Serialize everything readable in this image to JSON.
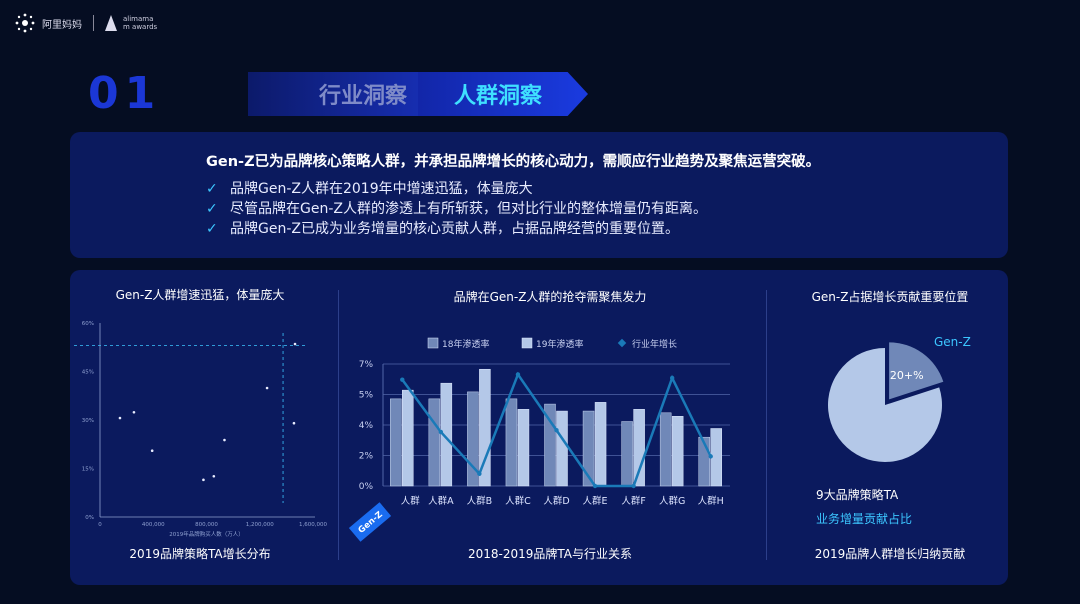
{
  "header": {
    "logo_text": "阿里妈妈",
    "awards_line1": "alimama",
    "awards_line2": "m awards"
  },
  "banner": {
    "number": "01",
    "tabs": [
      {
        "label": "行业洞察",
        "active": false
      },
      {
        "label": "人群洞察",
        "active": true
      }
    ]
  },
  "summary": {
    "headline": "Gen-Z已为品牌核心策略人群，并承担品牌增长的核心动力，需顺应行业趋势及聚焦运营突破。",
    "check_icon": "✓",
    "bullets": [
      "品牌Gen-Z人群在2019年中增速迅猛，体量庞大",
      "尽管品牌在Gen-Z人群的渗透上有所斩获，但对比行业的整体增量仍有距离。",
      "品牌Gen-Z已成为业务增量的核心贡献人群，占据品牌经营的重要位置。"
    ]
  },
  "colors": {
    "bar18": "#7088b8",
    "bar19": "#b4c8e8",
    "line": "#1a7ab8",
    "accent": "#3cc6ff",
    "panel": "#0b1a5e"
  },
  "chart_data": [
    {
      "type": "scatter",
      "title": "Gen-Z人群增速迅猛，体量庞大",
      "caption": "2019品牌策略TA增长分布",
      "xlabel": "2019年品牌购买人数（万人）",
      "xlim": [
        0,
        1600000
      ],
      "ylim": [
        0,
        60
      ],
      "xticks": [
        "0",
        "400,000",
        "800,000",
        "1,200,000",
        "1,600,000"
      ],
      "yticks": [
        "0%",
        "15%",
        "30%",
        "45%",
        "60%"
      ],
      "points": [
        [
          150000,
          30.6
        ],
        [
          255000,
          32.4
        ],
        [
          392000,
          20.5
        ],
        [
          777000,
          11.5
        ],
        [
          855000,
          12.6
        ],
        [
          935000,
          23.8
        ],
        [
          1255000,
          39.9
        ],
        [
          1457000,
          29
        ],
        [
          1465000,
          53.5
        ]
      ],
      "reference_lines": {
        "x": 1375000,
        "y": 53
      }
    },
    {
      "type": "bar",
      "title": "品牌在Gen-Z人群的抢夺需聚焦发力",
      "caption": "2018-2019品牌TA与行业关系",
      "categories": [
        "人群",
        "人群A",
        "人群B",
        "人群C",
        "人群D",
        "人群E",
        "人群F",
        "人群G",
        "人群H"
      ],
      "highlight_tag": "Gen-Z",
      "yticks": [
        "0%",
        "2%",
        "4%",
        "5%",
        "7%"
      ],
      "ylim": [
        0,
        7
      ],
      "series": [
        {
          "name": "18年渗透率",
          "type": "bar",
          "values": [
            5.0,
            5.0,
            5.4,
            5.0,
            4.7,
            4.3,
            3.7,
            4.2,
            2.8
          ]
        },
        {
          "name": "19年渗透率",
          "type": "bar",
          "values": [
            5.5,
            5.9,
            6.7,
            4.4,
            4.3,
            4.8,
            4.4,
            4.0,
            3.3
          ]
        },
        {
          "name": "行业年增长",
          "type": "line",
          "values": [
            6.1,
            3.1,
            0.7,
            6.4,
            3.2,
            0,
            0,
            6.2,
            1.7
          ]
        }
      ],
      "legend": "top"
    },
    {
      "type": "pie",
      "title": "Gen-Z占据增长贡献重要位置",
      "caption": "2019品牌人群增长归纳贡献",
      "slices": [
        {
          "label": "Gen-Z",
          "value": 20,
          "value_label": "20+%"
        },
        {
          "label": "",
          "value": 80
        }
      ],
      "note1": "9大品牌策略TA",
      "note2": "业务增量贡献占比"
    }
  ]
}
